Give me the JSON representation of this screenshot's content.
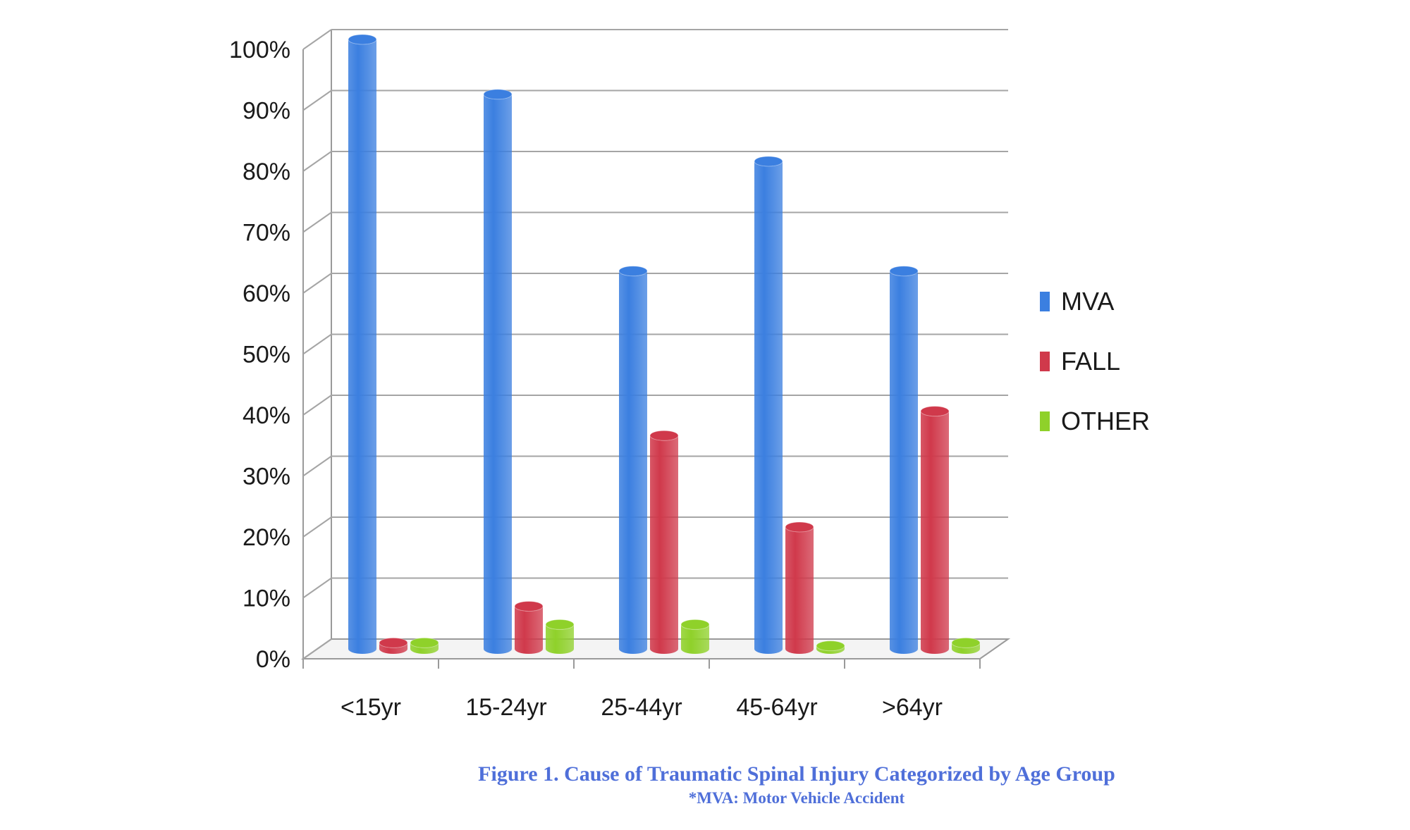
{
  "chart_data": {
    "type": "bar",
    "style": "3d-cylinder",
    "categories": [
      "<15yr",
      "15-24yr",
      "25-44yr",
      "45-64yr",
      ">64yr"
    ],
    "series": [
      {
        "name": "MVA",
        "color": "#3b7fe0",
        "values": [
          100,
          91,
          62,
          80,
          62
        ]
      },
      {
        "name": "FALL",
        "color": "#d0394b",
        "values": [
          1,
          7,
          35,
          20,
          39
        ]
      },
      {
        "name": "OTHER",
        "color": "#8fd12a",
        "values": [
          1,
          4,
          4,
          0.5,
          1
        ]
      }
    ],
    "ylim": [
      0,
      100
    ],
    "yticks": [
      "0%",
      "10%",
      "20%",
      "30%",
      "40%",
      "50%",
      "60%",
      "70%",
      "80%",
      "90%",
      "100%"
    ],
    "grid": true,
    "legend_position": "right"
  },
  "caption": {
    "title": "Figure 1. Cause of Traumatic Spinal Injury Categorized by Age Group",
    "note": "*MVA: Motor Vehicle Accident"
  }
}
